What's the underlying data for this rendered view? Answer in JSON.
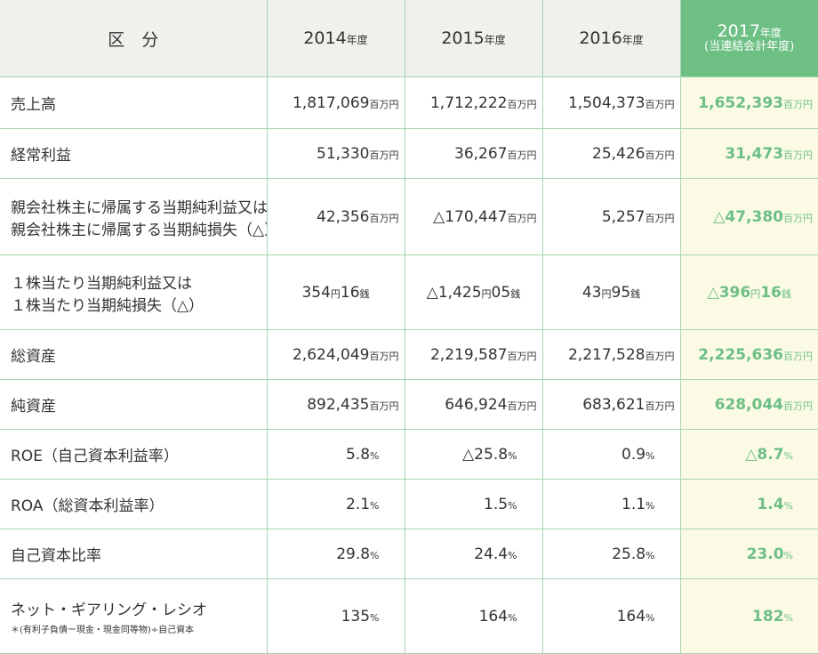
{
  "table": {
    "headers": [
      {
        "main": "区　分",
        "unit": "",
        "sub": ""
      },
      {
        "main": "2014",
        "unit": "年度",
        "sub": ""
      },
      {
        "main": "2015",
        "unit": "年度",
        "sub": ""
      },
      {
        "main": "2016",
        "unit": "年度",
        "sub": ""
      },
      {
        "main": "2017",
        "unit": "年度",
        "sub": "(当連結会計年度)"
      }
    ],
    "rows": [
      {
        "label": "売上高",
        "values": [
          {
            "v": "1,817,069",
            "u": "百万円"
          },
          {
            "v": "1,712,222",
            "u": "百万円"
          },
          {
            "v": "1,504,373",
            "u": "百万円"
          },
          {
            "v": "1,652,393",
            "u": "百万円"
          }
        ]
      },
      {
        "label": "経常利益",
        "values": [
          {
            "v": "51,330",
            "u": "百万円"
          },
          {
            "v": "36,267",
            "u": "百万円"
          },
          {
            "v": "25,426",
            "u": "百万円"
          },
          {
            "v": "31,473",
            "u": "百万円"
          }
        ]
      },
      {
        "label": "親会社株主に帰属する当期純利益又は",
        "label2": "親会社株主に帰属する当期純損失（△）",
        "values": [
          {
            "v": "42,356",
            "u": "百万円"
          },
          {
            "v": "△170,447",
            "u": "百万円"
          },
          {
            "v": "5,257",
            "u": "百万円"
          },
          {
            "v": "△47,380",
            "u": "百万円"
          }
        ]
      },
      {
        "label": "１株当たり当期純利益又は",
        "label2": "１株当たり当期純損失（△）",
        "values": [
          {
            "v": "354",
            "u": "円",
            "v2": "16",
            "u2": "銭"
          },
          {
            "v": "△1,425",
            "u": "円",
            "v2": "05",
            "u2": "銭"
          },
          {
            "v": "43",
            "u": "円",
            "v2": "95",
            "u2": "銭"
          },
          {
            "v": "△396",
            "u": "円",
            "v2": "16",
            "u2": "銭"
          }
        ]
      },
      {
        "label": "総資産",
        "values": [
          {
            "v": "2,624,049",
            "u": "百万円"
          },
          {
            "v": "2,219,587",
            "u": "百万円"
          },
          {
            "v": "2,217,528",
            "u": "百万円"
          },
          {
            "v": "2,225,636",
            "u": "百万円"
          }
        ]
      },
      {
        "label": "純資産",
        "values": [
          {
            "v": "892,435",
            "u": "百万円"
          },
          {
            "v": "646,924",
            "u": "百万円"
          },
          {
            "v": "683,621",
            "u": "百万円"
          },
          {
            "v": "628,044",
            "u": "百万円"
          }
        ]
      },
      {
        "label": "ROE（自己資本利益率）",
        "values": [
          {
            "v": "5.8",
            "u": "%"
          },
          {
            "v": "△25.8",
            "u": "%"
          },
          {
            "v": "0.9",
            "u": "%"
          },
          {
            "v": "△8.7",
            "u": "%"
          }
        ]
      },
      {
        "label": "ROA（総資本利益率）",
        "values": [
          {
            "v": "2.1",
            "u": "%"
          },
          {
            "v": "1.5",
            "u": "%"
          },
          {
            "v": "1.1",
            "u": "%"
          },
          {
            "v": "1.4",
            "u": "%"
          }
        ]
      },
      {
        "label": "自己資本比率",
        "values": [
          {
            "v": "29.8",
            "u": "%"
          },
          {
            "v": "24.4",
            "u": "%"
          },
          {
            "v": "25.8",
            "u": "%"
          },
          {
            "v": "23.0",
            "u": "%"
          }
        ]
      },
      {
        "label": "ネット・ギアリング・レシオ",
        "note": "＊(有利子負債ー現金・現金同等物)÷自己資本",
        "values": [
          {
            "v": "135",
            "u": "%"
          },
          {
            "v": "164",
            "u": "%"
          },
          {
            "v": "164",
            "u": "%"
          },
          {
            "v": "182",
            "u": "%"
          }
        ]
      }
    ]
  }
}
